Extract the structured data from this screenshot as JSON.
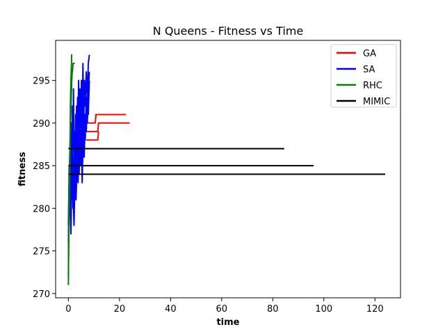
{
  "chart_data": {
    "type": "line",
    "title": "N Queens - Fitness vs Time",
    "xlabel": "time",
    "ylabel": "fitness",
    "xlim": [
      -5,
      130
    ],
    "ylim": [
      269.5,
      299.7
    ],
    "xticks": [
      0,
      20,
      40,
      60,
      80,
      100,
      120
    ],
    "yticks": [
      270,
      275,
      280,
      285,
      290,
      295
    ],
    "grid": false,
    "legend_position": "top-right",
    "series": [
      {
        "name": "GA",
        "color": "#ff0000",
        "runs": [
          [
            [
              7,
              290
            ],
            [
              10.5,
              290
            ],
            [
              10.8,
              291
            ],
            [
              22.5,
              291
            ]
          ],
          [
            [
              7,
              289
            ],
            [
              11.5,
              289
            ],
            [
              11.8,
              290
            ],
            [
              24,
              290
            ]
          ],
          [
            [
              7,
              288
            ],
            [
              11.5,
              288
            ],
            [
              11.8,
              289
            ]
          ]
        ]
      },
      {
        "name": "SA",
        "color": "#0000ff",
        "runs": [
          [
            [
              0,
              276
            ],
            [
              0.3,
              283
            ],
            [
              0.5,
              279
            ],
            [
              0.8,
              288
            ],
            [
              1.0,
              284
            ],
            [
              1.2,
              290
            ],
            [
              1.4,
              281
            ],
            [
              1.6,
              292
            ],
            [
              1.8,
              287
            ],
            [
              2.0,
              294
            ],
            [
              2.2,
              285
            ],
            [
              2.4,
              289
            ],
            [
              2.6,
              283
            ],
            [
              2.8,
              291
            ],
            [
              3.0,
              286
            ],
            [
              3.2,
              292
            ],
            [
              3.4,
              288
            ],
            [
              3.6,
              293
            ],
            [
              3.8,
              290
            ],
            [
              4.0,
              295
            ],
            [
              4.2,
              288
            ],
            [
              4.5,
              294
            ],
            [
              4.8,
              287
            ],
            [
              5.1,
              295
            ],
            [
              5.4,
              289
            ],
            [
              5.7,
              297
            ],
            [
              6.0,
              290
            ],
            [
              6.3,
              295
            ],
            [
              6.6,
              292
            ],
            [
              7.0,
              296
            ],
            [
              7.4,
              293
            ],
            [
              7.8,
              297
            ],
            [
              8.2,
              298
            ]
          ],
          [
            [
              0,
              278
            ],
            [
              0.3,
              285
            ],
            [
              0.6,
              280
            ],
            [
              0.9,
              287
            ],
            [
              1.2,
              282
            ],
            [
              1.5,
              289
            ],
            [
              1.8,
              280
            ],
            [
              2.1,
              286
            ],
            [
              2.4,
              281
            ],
            [
              2.7,
              287
            ],
            [
              3.0,
              283
            ],
            [
              3.3,
              289
            ],
            [
              3.6,
              285
            ],
            [
              3.9,
              291
            ],
            [
              4.2,
              284
            ],
            [
              4.6,
              290
            ],
            [
              5.0,
              285
            ],
            [
              5.4,
              292
            ],
            [
              5.8,
              286
            ],
            [
              6.2,
              291
            ],
            [
              6.6,
              288
            ],
            [
              7.0,
              293
            ],
            [
              7.4,
              290
            ],
            [
              7.8,
              294
            ],
            [
              8.2,
              296
            ]
          ],
          [
            [
              0.2,
              280
            ],
            [
              0.6,
              284
            ],
            [
              1.0,
              277
            ],
            [
              1.4,
              286
            ],
            [
              1.8,
              282
            ],
            [
              2.2,
              278
            ],
            [
              2.6,
              284
            ],
            [
              3.0,
              281
            ],
            [
              3.4,
              286
            ],
            [
              3.8,
              283
            ],
            [
              4.2,
              288
            ],
            [
              4.6,
              285
            ],
            [
              5.0,
              290
            ],
            [
              5.4,
              283
            ],
            [
              5.8,
              289
            ],
            [
              6.2,
              286
            ],
            [
              6.6,
              291
            ],
            [
              7.0,
              289
            ],
            [
              7.4,
              293
            ],
            [
              7.8,
              291
            ],
            [
              8.2,
              295
            ]
          ]
        ]
      },
      {
        "name": "RHC",
        "color": "#008000",
        "runs": [
          [
            [
              0,
              271
            ],
            [
              0.1,
              276
            ],
            [
              0.2,
              278
            ],
            [
              0.4,
              281
            ],
            [
              0.5,
              283
            ],
            [
              0.6,
              286
            ],
            [
              0.7,
              289
            ],
            [
              0.8,
              292
            ],
            [
              0.9,
              294
            ],
            [
              1.0,
              295
            ],
            [
              1.1,
              296
            ],
            [
              1.2,
              297
            ],
            [
              1.3,
              298
            ],
            [
              1.5,
              298
            ]
          ],
          [
            [
              0,
              273
            ],
            [
              0.2,
              277
            ],
            [
              0.4,
              282
            ],
            [
              0.6,
              286
            ],
            [
              0.8,
              290
            ],
            [
              1.0,
              292
            ],
            [
              1.2,
              294
            ],
            [
              1.4,
              296
            ],
            [
              1.6,
              296
            ],
            [
              1.8,
              297
            ],
            [
              2.5,
              297
            ]
          ],
          [
            [
              0,
              272
            ],
            [
              0.15,
              279
            ],
            [
              0.3,
              283
            ],
            [
              0.5,
              286
            ],
            [
              0.7,
              288
            ],
            [
              0.9,
              291
            ],
            [
              1.1,
              293
            ],
            [
              1.3,
              295
            ],
            [
              1.5,
              296
            ]
          ]
        ]
      },
      {
        "name": "MIMIC",
        "color": "#000000",
        "runs": [
          [
            [
              0,
              287
            ],
            [
              84.5,
              287
            ]
          ],
          [
            [
              0,
              285
            ],
            [
              96,
              285
            ]
          ],
          [
            [
              0,
              284
            ],
            [
              124,
              284
            ]
          ]
        ]
      }
    ]
  }
}
